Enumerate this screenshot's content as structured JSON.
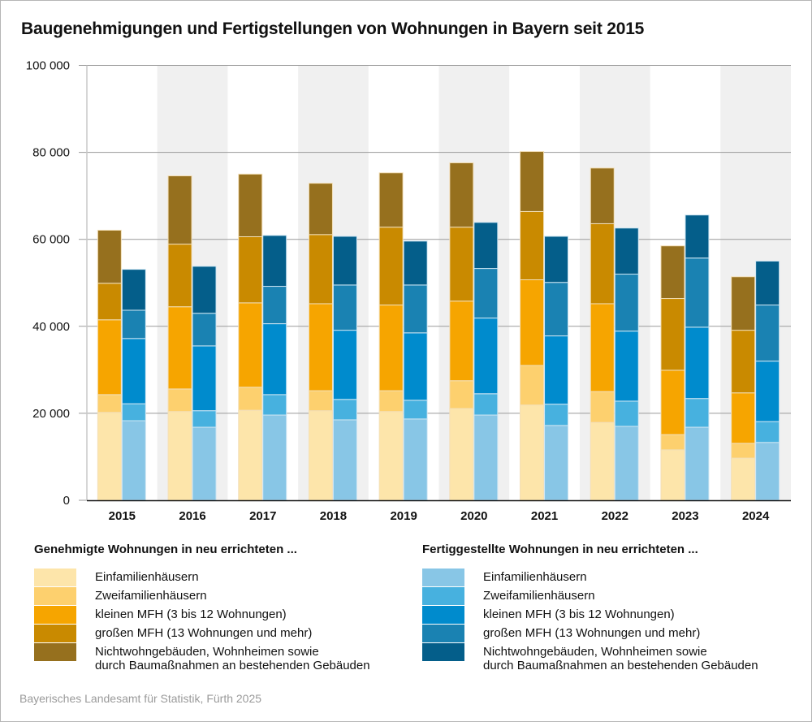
{
  "title": "Baugenehmigungen und Fertigstellungen von Wohnungen in Bayern seit 2015",
  "source": "Bayerisches Landesamt für Statistik, Fürth 2025",
  "chart_data": {
    "type": "bar",
    "stacked": true,
    "grouped": true,
    "title": "Baugenehmigungen und Fertigstellungen von Wohnungen in Bayern seit 2015",
    "xlabel": "",
    "ylabel": "",
    "ylim": [
      0,
      100000
    ],
    "yticks": [
      0,
      20000,
      40000,
      60000,
      80000,
      100000
    ],
    "ytick_labels": [
      "0",
      "20 000",
      "40 000",
      "60 000",
      "80 000",
      "100 000"
    ],
    "grid": true,
    "categories": [
      "2015",
      "2016",
      "2017",
      "2018",
      "2019",
      "2020",
      "2021",
      "2022",
      "2023",
      "2024"
    ],
    "groups": [
      {
        "name": "Genehmigte Wohnungen in neu errichteten ...",
        "series": [
          {
            "name": "Einfamilienhäusern",
            "color": "#fde5aa",
            "values": [
              20200,
              20400,
              20700,
              20600,
              20400,
              21100,
              21900,
              17900,
              11600,
              9700
            ]
          },
          {
            "name": "Zweifamilienhäusern",
            "color": "#fdd06e",
            "values": [
              4100,
              5200,
              5300,
              4600,
              4800,
              6400,
              9100,
              7100,
              3500,
              3400
            ]
          },
          {
            "name": "kleinen MFH (3 bis 12 Wohnungen)",
            "color": "#f6a500",
            "values": [
              17200,
              18900,
              19400,
              20000,
              19700,
              18300,
              19700,
              20200,
              14800,
              11600
            ]
          },
          {
            "name": "großen MFH (13 Wohnungen und mehr)",
            "color": "#c98a00",
            "values": [
              8400,
              14400,
              15200,
              15900,
              17900,
              17000,
              15700,
              18400,
              16500,
              14400
            ]
          },
          {
            "name": "Nichtwohngebäuden, Wohnheimen sowie durch Baumaßnahmen an bestehenden Gebäuden",
            "color": "#96701e",
            "values": [
              12200,
              15700,
              14400,
              11800,
              12500,
              14800,
              13800,
              12800,
              12100,
              12300
            ]
          }
        ]
      },
      {
        "name": "Fertiggestellte Wohnungen in neu errichteten ...",
        "series": [
          {
            "name": "Einfamilienhäusern",
            "color": "#88c6e6",
            "values": [
              18300,
              16800,
              19600,
              18500,
              18700,
              19600,
              17200,
              17000,
              16800,
              13300
            ]
          },
          {
            "name": "Zweifamilienhäusern",
            "color": "#47b1df",
            "values": [
              3900,
              3800,
              4700,
              4700,
              4300,
              4900,
              4900,
              5800,
              6600,
              4800
            ]
          },
          {
            "name": "kleinen MFH (3 bis 12 Wohnungen)",
            "color": "#008bcd",
            "values": [
              15000,
              14900,
              16300,
              15900,
              15500,
              17400,
              15700,
              16100,
              16400,
              13900
            ]
          },
          {
            "name": "großen MFH (13 Wohnungen und mehr)",
            "color": "#1a82b2",
            "values": [
              6500,
              7500,
              8600,
              10400,
              11000,
              11400,
              12300,
              13100,
              15900,
              12900
            ]
          },
          {
            "name": "Nichtwohngebäuden, Wohnheimen sowie durch Baumaßnahmen an bestehenden Gebäuden",
            "color": "#045e8a",
            "values": [
              9400,
              10800,
              11700,
              11200,
              10100,
              10600,
              10600,
              10600,
              9900,
              10100
            ]
          }
        ]
      }
    ],
    "legend": {
      "placement": "bottom"
    }
  },
  "legend": {
    "left": {
      "title": "Genehmigte Wohnungen in neu errichteten ...",
      "items": [
        {
          "label": "Einfamilienhäusern",
          "color": "#fde5aa"
        },
        {
          "label": "Zweifamilienhäusern",
          "color": "#fdd06e"
        },
        {
          "label": "kleinen MFH (3 bis 12 Wohnungen)",
          "color": "#f6a500"
        },
        {
          "label": "großen MFH (13 Wohnungen und mehr)",
          "color": "#c98a00"
        },
        {
          "label": "Nichtwohngebäuden, Wohnheimen sowie",
          "label2": "durch Baumaßnahmen an bestehenden Gebäuden",
          "color": "#96701e"
        }
      ]
    },
    "right": {
      "title": "Fertiggestellte Wohnungen in neu errichteten ...",
      "items": [
        {
          "label": "Einfamilienhäusern",
          "color": "#88c6e6"
        },
        {
          "label": "Zweifamilienhäusern",
          "color": "#47b1df"
        },
        {
          "label": "kleinen MFH (3 bis 12 Wohnungen)",
          "color": "#008bcd"
        },
        {
          "label": "großen MFH (13 Wohnungen und mehr)",
          "color": "#1a82b2"
        },
        {
          "label": "Nichtwohngebäuden, Wohnheimen sowie",
          "label2": "durch Baumaßnahmen an bestehenden Gebäuden",
          "color": "#045e8a"
        }
      ]
    }
  }
}
